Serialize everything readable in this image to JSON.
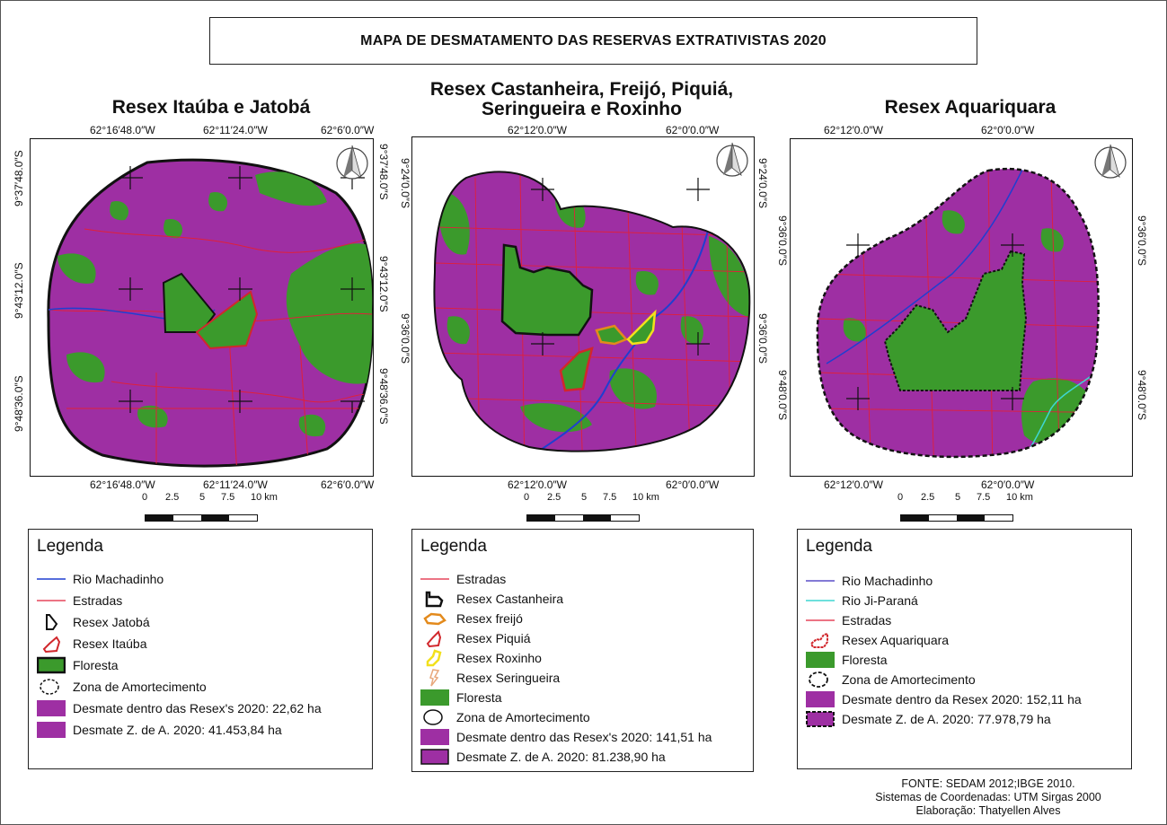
{
  "main_title": "MAPA DE DESMATAMENTO DAS RESERVAS EXTRATIVISTAS 2020",
  "map1": {
    "title": "Resex Itaúba e Jatobá",
    "top_coords": [
      "62°16′48.0″W",
      "62°11′24.0″W",
      "62°6′0.0″W"
    ],
    "bottom_coords": [
      "62°16′48.0″W",
      "62°11′24.0″W",
      "62°6′0.0″W"
    ],
    "left_coords": [
      "9°37′48.0″S",
      "9°43′12.0″S",
      "9°48′36.0″S"
    ],
    "right_coords": [
      "9°37′48.0″S",
      "9°43′12.0″S",
      "9°48′36.0″S"
    ],
    "scale": [
      "0",
      "2.5",
      "5",
      "7.5",
      "10 km"
    ]
  },
  "map2": {
    "title_line1": "Resex Castanheira, Freijó, Piquiá,",
    "title_line2": "Seringueira e Roxinho",
    "top_coords": [
      "62°12′0.0″W",
      "62°0′0.0″W"
    ],
    "bottom_coords": [
      "62°12′0.0″W",
      "62°0′0.0″W"
    ],
    "left_coords": [
      "9°24′0.0″S",
      "9°36′0.0″S"
    ],
    "right_coords": [
      "9°24′0.0″S",
      "9°36′0.0″S"
    ],
    "scale": [
      "0",
      "2.5",
      "5",
      "7.5",
      "10 km"
    ]
  },
  "map3": {
    "title": "Resex Aquariquara",
    "top_coords": [
      "62°12′0.0″W",
      "62°0′0.0″W"
    ],
    "bottom_coords": [
      "62°12′0.0″W",
      "62°0′0.0″W"
    ],
    "left_coords": [
      "9°36′0.0″S",
      "9°48′0.0″S"
    ],
    "right_coords": [
      "9°36′0.0″S",
      "9°48′0.0″S"
    ],
    "scale": [
      "0",
      "2.5",
      "5",
      "7.5",
      "10 km"
    ]
  },
  "legend1": {
    "title": "Legenda",
    "items": [
      "Rio Machadinho",
      "Estradas",
      "Resex Jatobá",
      "Resex Itaúba",
      "Floresta",
      "Zona de Amortecimento",
      "Desmate dentro das Resex's  2020: 22,62 ha",
      "Desmate Z. de A. 2020: 41.453,84 ha"
    ]
  },
  "legend2": {
    "title": "Legenda",
    "items": [
      "Estradas",
      "Resex Castanheira",
      "Resex freijó",
      "Resex Piquiá",
      "Resex Roxinho",
      "Resex Seringueira",
      "Floresta",
      "Zona de Amortecimento",
      "Desmate dentro das Resex's 2020: 141,51 ha",
      "Desmate Z. de A. 2020: 81.238,90 ha"
    ]
  },
  "legend3": {
    "title": "Legenda",
    "items": [
      "Rio Machadinho",
      "Rio Ji-Paraná",
      "Estradas",
      "Resex Aquariquara",
      "Floresta",
      "Zona de Amortecimento",
      "Desmate dentro da Resex 2020: 152,11 ha",
      "Desmate Z. de A. 2020: 77.978,79 ha"
    ]
  },
  "footer": {
    "line1": "FONTE:  SEDAM 2012;IBGE 2010.",
    "line2": "Sistemas de Coordenadas: UTM Sirgas 2000",
    "line3": "Elaboração: Thatyellen Alves"
  },
  "colors": {
    "deforestation": "#9e2fa3",
    "forest": "#3b9a2c",
    "road": "#e0203a",
    "river": "#1f3fd0",
    "river2": "#3fd6d0"
  }
}
